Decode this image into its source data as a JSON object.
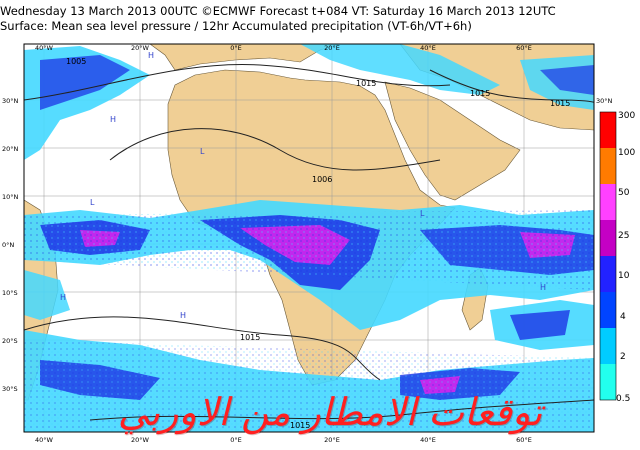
{
  "header": {
    "line1": "Wednesday 13 March 2013 00UTC ©ECMWF Forecast t+084 VT: Saturday 16 March 2013 12UTC",
    "line2": "Surface: Mean sea level pressure / 12hr Accumulated precipitation (VT-6h/VT+6h)"
  },
  "map": {
    "lon_labels_top": [
      "40°W",
      "20°W",
      "0°E",
      "20°E",
      "40°E",
      "60°E"
    ],
    "lon_labels_bottom": [
      "40°W",
      "20°W",
      "0°E",
      "20°E",
      "40°E",
      "60°E"
    ],
    "lat_labels_left": [
      "30°N",
      "20°N",
      "10°N",
      "0°N",
      "10°S",
      "20°S",
      "30°S"
    ],
    "lat_label_right_top": "30°N",
    "isobar_labels": [
      "1005",
      "1015",
      "1015",
      "1006",
      "1015",
      "1015",
      "1015"
    ],
    "pressure_centers": [
      "H",
      "H",
      "L",
      "L",
      "H",
      "H",
      "L",
      "H"
    ],
    "colors": {
      "ocean": "#ffffff",
      "land": "#f0cf95",
      "precip_light": "#44d8ff",
      "precip_medium": "#1d34e6",
      "precip_heavy": "#dd22ee"
    }
  },
  "legend": {
    "labels": [
      "300",
      "100",
      "50",
      "25",
      "10",
      "4",
      "2",
      "0.5"
    ],
    "colors": [
      "#ff0000",
      "#ff7b00",
      "#ff40ff",
      "#c400c4",
      "#2222ff",
      "#0044ff",
      "#00ccff",
      "#22ffee"
    ]
  },
  "watermark": "توقعات الامطار من الاوربي"
}
